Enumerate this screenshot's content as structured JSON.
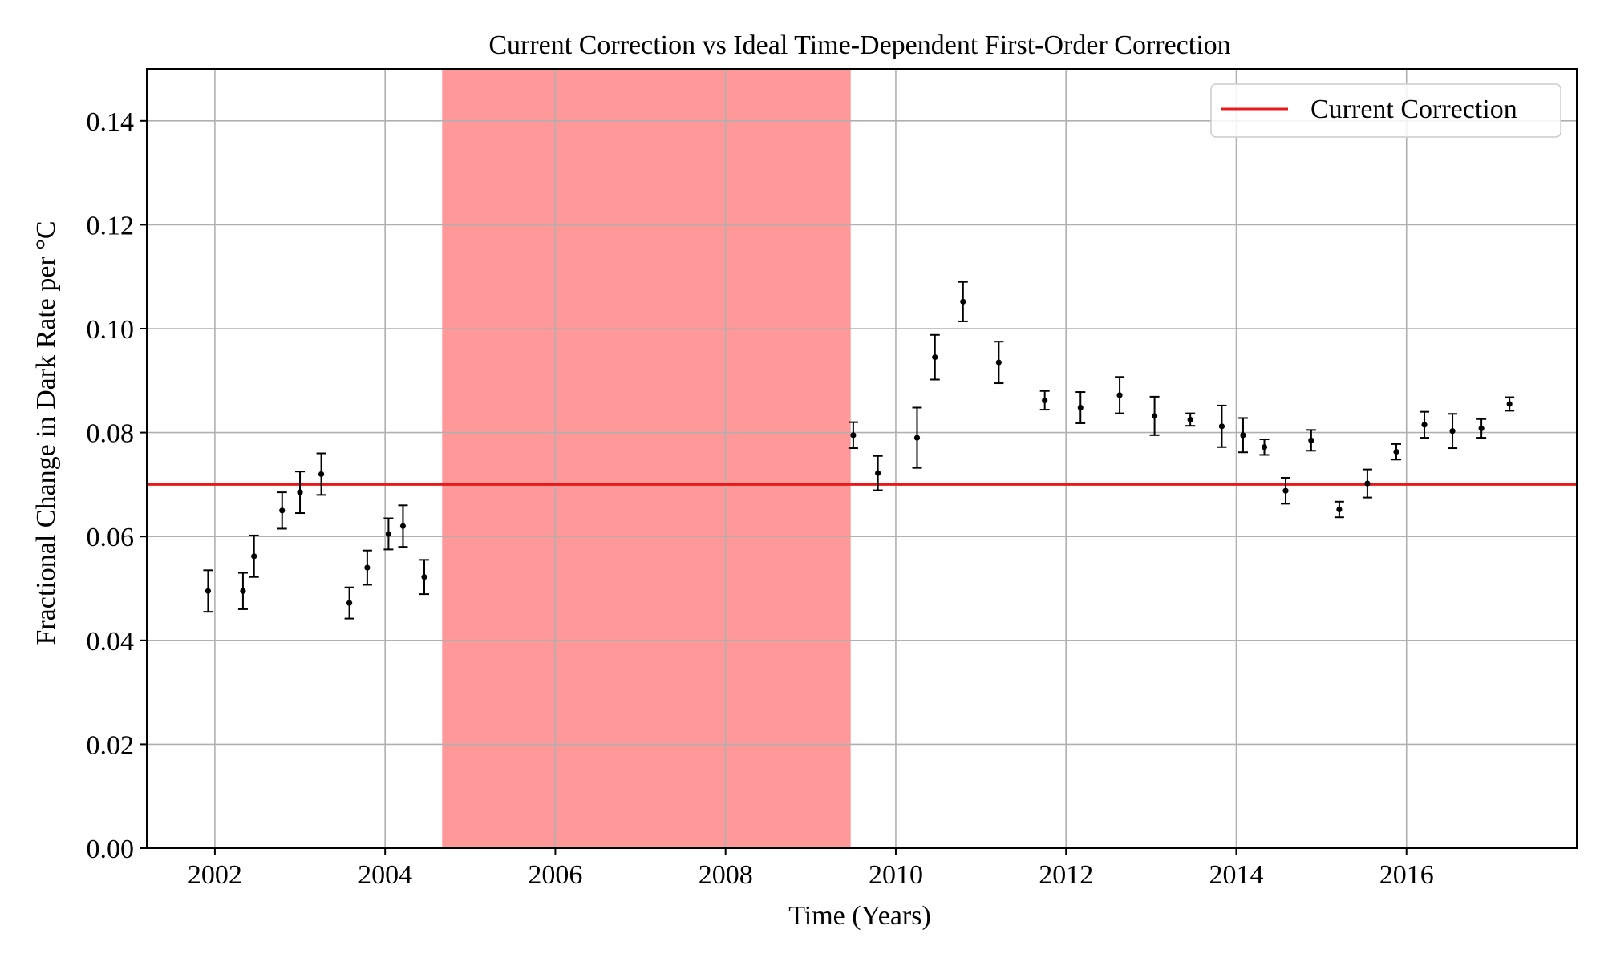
{
  "chart_data": {
    "type": "scatter",
    "title": "Current Correction vs Ideal Time-Dependent First-Order Correction",
    "xlabel": "Time (Years)",
    "ylabel": "Fractional Change in Dark Rate per °C",
    "xlim": [
      2001.2,
      2018.0
    ],
    "ylim": [
      0.0,
      0.15
    ],
    "x_ticks": [
      2002,
      2004,
      2006,
      2008,
      2010,
      2012,
      2014,
      2016
    ],
    "x_tick_labels": [
      "2002",
      "2004",
      "2006",
      "2008",
      "2010",
      "2012",
      "2014",
      "2016"
    ],
    "y_ticks": [
      0.0,
      0.02,
      0.04,
      0.06,
      0.08,
      0.1,
      0.12,
      0.14
    ],
    "y_tick_labels": [
      "0.00",
      "0.02",
      "0.04",
      "0.06",
      "0.08",
      "0.10",
      "0.12",
      "0.14"
    ],
    "grid": true,
    "legend": {
      "placement": "top-right",
      "entries": [
        {
          "label": "Current Correction",
          "color": "#e8191b"
        }
      ]
    },
    "reference_line": {
      "name": "Current Correction",
      "y": 0.07,
      "color": "#e8191b"
    },
    "shaded_region": {
      "x_start": 2004.67,
      "x_end": 2009.47,
      "color": "#ff9999"
    },
    "points": [
      {
        "x": 2001.92,
        "y": 0.0495,
        "err": 0.004
      },
      {
        "x": 2002.33,
        "y": 0.0495,
        "err": 0.0035
      },
      {
        "x": 2002.46,
        "y": 0.0562,
        "err": 0.004
      },
      {
        "x": 2002.79,
        "y": 0.065,
        "err": 0.0035
      },
      {
        "x": 2003.0,
        "y": 0.0685,
        "err": 0.004
      },
      {
        "x": 2003.25,
        "y": 0.072,
        "err": 0.004
      },
      {
        "x": 2003.58,
        "y": 0.0472,
        "err": 0.003
      },
      {
        "x": 2003.79,
        "y": 0.054,
        "err": 0.0033
      },
      {
        "x": 2004.04,
        "y": 0.0605,
        "err": 0.003
      },
      {
        "x": 2004.21,
        "y": 0.062,
        "err": 0.004
      },
      {
        "x": 2004.46,
        "y": 0.0522,
        "err": 0.0033
      },
      {
        "x": 2009.5,
        "y": 0.0795,
        "err": 0.0025
      },
      {
        "x": 2009.79,
        "y": 0.0722,
        "err": 0.0033
      },
      {
        "x": 2010.25,
        "y": 0.079,
        "err": 0.0058
      },
      {
        "x": 2010.46,
        "y": 0.0945,
        "err": 0.0043
      },
      {
        "x": 2010.79,
        "y": 0.1052,
        "err": 0.0038
      },
      {
        "x": 2011.21,
        "y": 0.0935,
        "err": 0.004
      },
      {
        "x": 2011.75,
        "y": 0.0862,
        "err": 0.0018
      },
      {
        "x": 2012.17,
        "y": 0.0848,
        "err": 0.003
      },
      {
        "x": 2012.63,
        "y": 0.0872,
        "err": 0.0035
      },
      {
        "x": 2013.04,
        "y": 0.0832,
        "err": 0.0037
      },
      {
        "x": 2013.46,
        "y": 0.0825,
        "err": 0.0012
      },
      {
        "x": 2013.83,
        "y": 0.0812,
        "err": 0.004
      },
      {
        "x": 2014.08,
        "y": 0.0795,
        "err": 0.0033
      },
      {
        "x": 2014.33,
        "y": 0.0772,
        "err": 0.0015
      },
      {
        "x": 2014.58,
        "y": 0.0688,
        "err": 0.0025
      },
      {
        "x": 2014.88,
        "y": 0.0785,
        "err": 0.002
      },
      {
        "x": 2015.21,
        "y": 0.0652,
        "err": 0.0015
      },
      {
        "x": 2015.54,
        "y": 0.0702,
        "err": 0.0027
      },
      {
        "x": 2015.88,
        "y": 0.0763,
        "err": 0.0015
      },
      {
        "x": 2016.21,
        "y": 0.0815,
        "err": 0.0025
      },
      {
        "x": 2016.54,
        "y": 0.0803,
        "err": 0.0033
      },
      {
        "x": 2016.88,
        "y": 0.0808,
        "err": 0.0018
      },
      {
        "x": 2017.21,
        "y": 0.0855,
        "err": 0.0013
      }
    ]
  }
}
